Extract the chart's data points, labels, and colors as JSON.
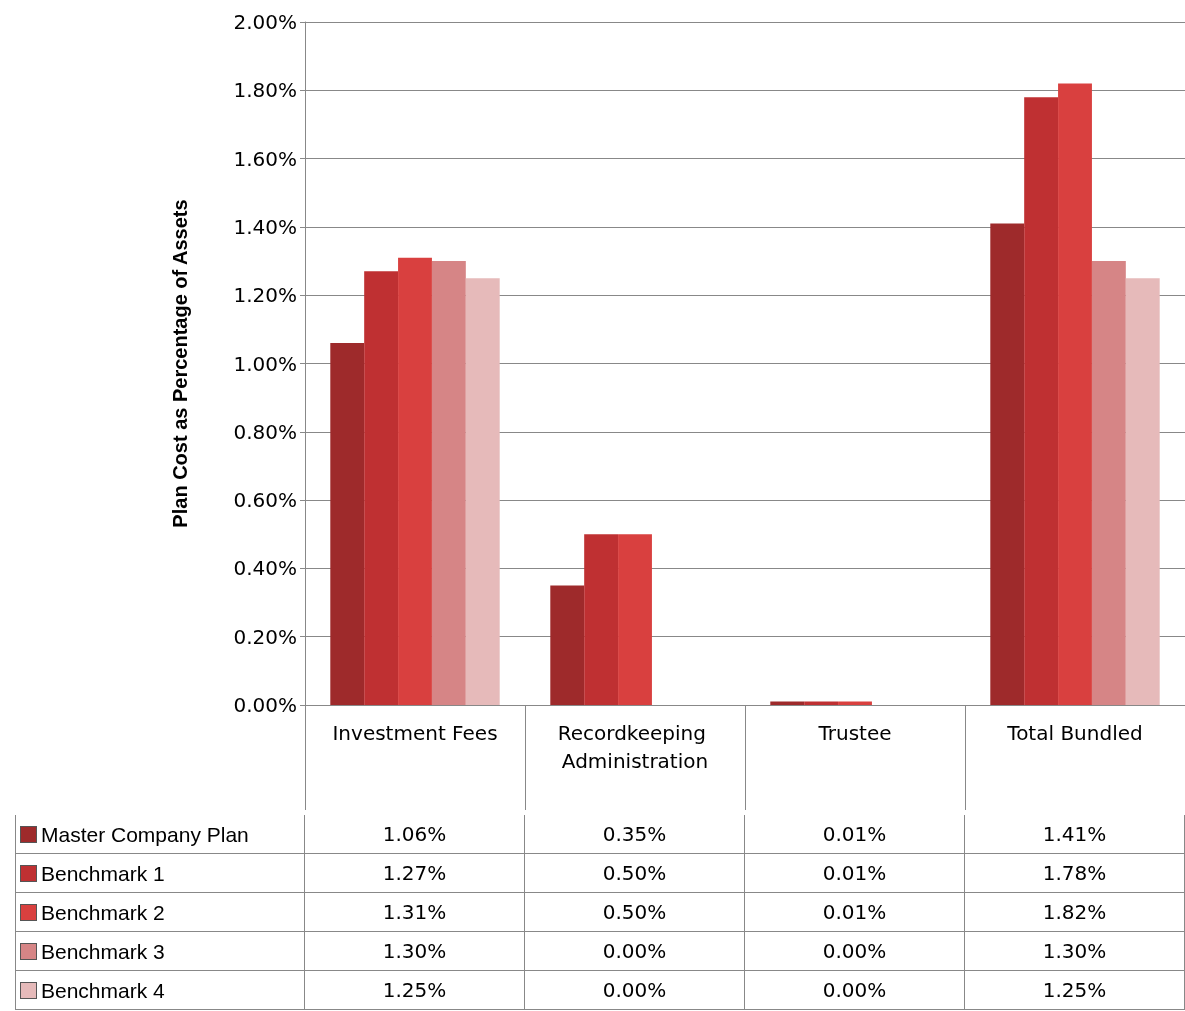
{
  "chart_data": {
    "type": "bar",
    "ylabel": "Plan Cost as Percentage of Assets",
    "categories": [
      "Investment Fees",
      "Recordkeeping Administration",
      "Trustee",
      "Total Bundled"
    ],
    "series": [
      {
        "name": "Master Company Plan",
        "color": "#9e2a2b",
        "values": [
          1.06,
          0.35,
          0.01,
          1.41
        ],
        "value_labels": [
          "1.06%",
          "0.35%",
          "0.01%",
          "1.41%"
        ]
      },
      {
        "name": "Benchmark 1",
        "color": "#bf3032",
        "values": [
          1.27,
          0.5,
          0.01,
          1.78
        ],
        "value_labels": [
          "1.27%",
          "0.50%",
          "0.01%",
          "1.78%"
        ]
      },
      {
        "name": "Benchmark 2",
        "color": "#d9403f",
        "values": [
          1.31,
          0.5,
          0.01,
          1.82
        ],
        "value_labels": [
          "1.31%",
          "0.50%",
          "0.01%",
          "1.82%"
        ]
      },
      {
        "name": "Benchmark 3",
        "color": "#d68586",
        "values": [
          1.3,
          0,
          0,
          1.3
        ],
        "value_labels": [
          "1.30%",
          "0.00%",
          "0.00%",
          "1.30%"
        ]
      },
      {
        "name": "Benchmark 4",
        "color": "#e6baba",
        "values": [
          1.25,
          0,
          0,
          1.25
        ],
        "value_labels": [
          "1.25%",
          "0.00%",
          "0.00%",
          "1.25%"
        ]
      }
    ],
    "ylim": [
      0,
      2
    ],
    "yticks": [
      {
        "value": 0,
        "label": "0.00%"
      },
      {
        "value": 0.2,
        "label": "0.20%"
      },
      {
        "value": 0.4,
        "label": "0.40%"
      },
      {
        "value": 0.6,
        "label": "0.60%"
      },
      {
        "value": 0.8,
        "label": "0.80%"
      },
      {
        "value": 1.0,
        "label": "1.00%"
      },
      {
        "value": 1.2,
        "label": "1.20%"
      },
      {
        "value": 1.4,
        "label": "1.40%"
      },
      {
        "value": 1.6,
        "label": "1.60%"
      },
      {
        "value": 1.8,
        "label": "1.80%"
      },
      {
        "value": 2.0,
        "label": "2.00%"
      }
    ],
    "grid": "y",
    "legend": "bottom left"
  }
}
